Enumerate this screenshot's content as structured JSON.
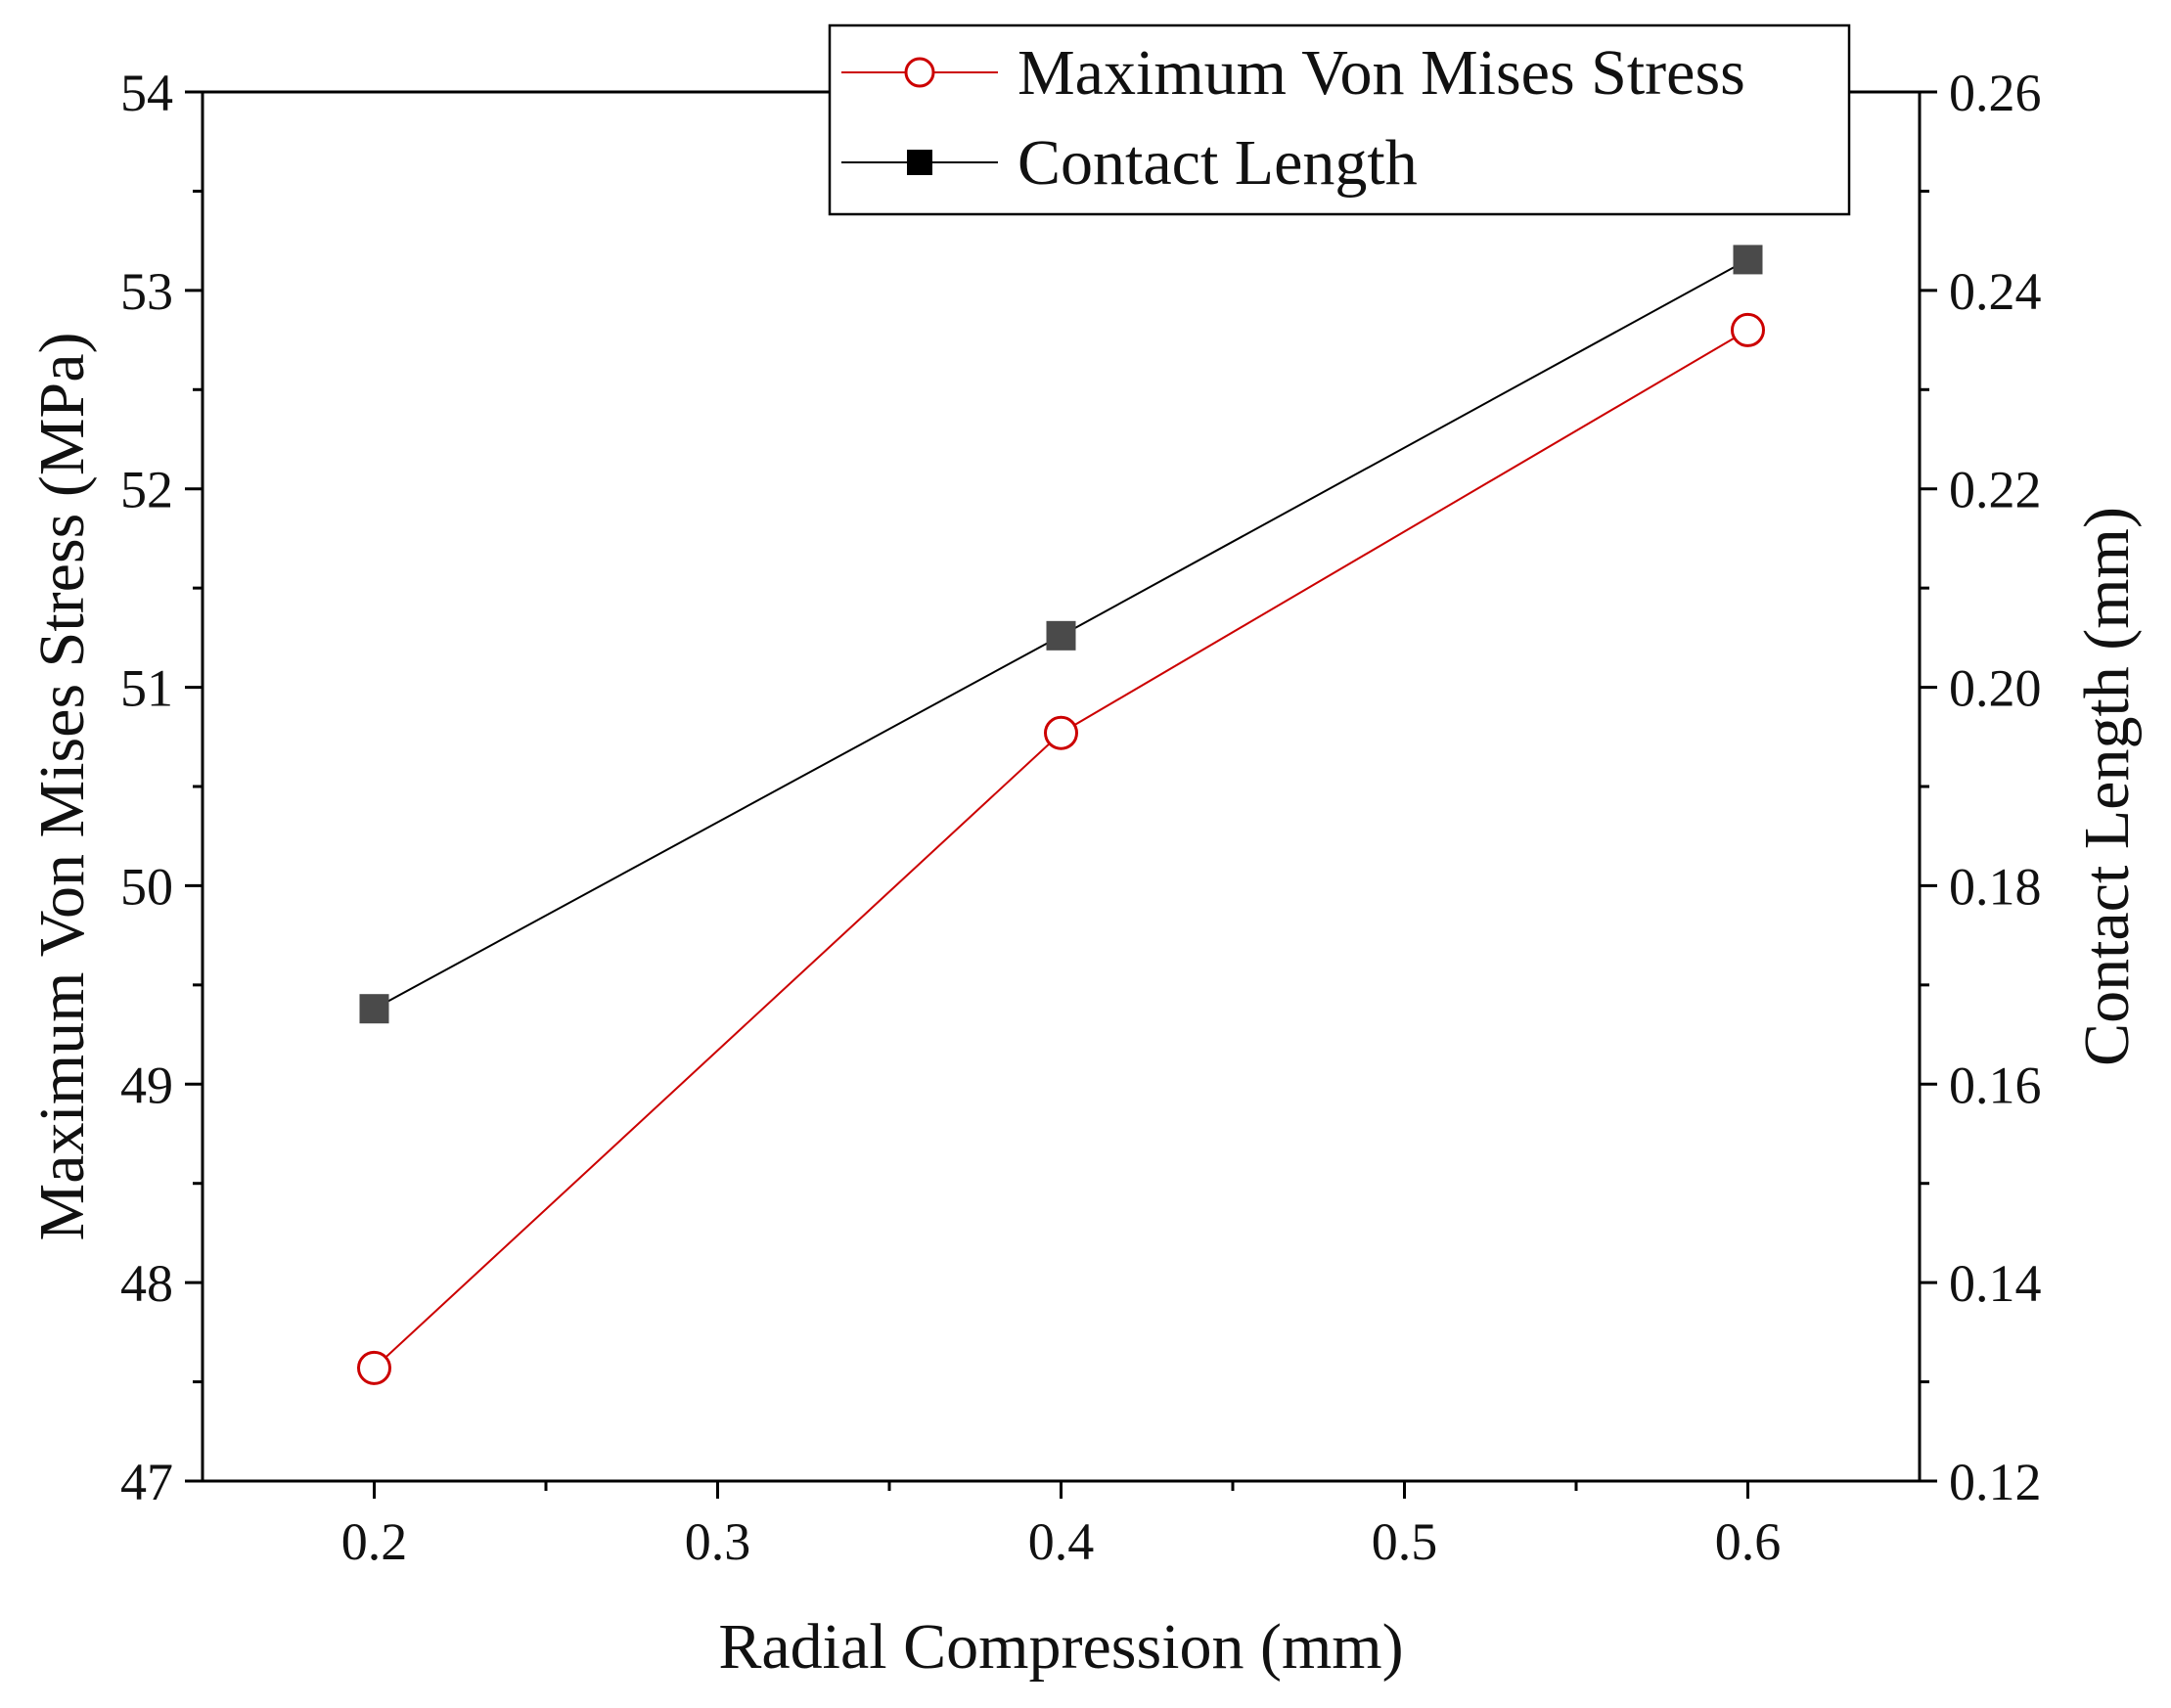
{
  "chart_data": {
    "type": "line",
    "xlabel": "Radial Compression (mm)",
    "ylabel_left": "Maximum Von Mises Stress (MPa)",
    "ylabel_right": "Contact Length (mm)",
    "xlim": [
      0.15,
      0.65
    ],
    "xticks": [
      0.2,
      0.3,
      0.4,
      0.5,
      0.6
    ],
    "xtick_labels": [
      "0.2",
      "0.3",
      "0.4",
      "0.5",
      "0.6"
    ],
    "ylim_left": [
      47,
      54
    ],
    "yticks_left": [
      47,
      48,
      49,
      50,
      51,
      52,
      53,
      54
    ],
    "ytick_labels_left": [
      "47",
      "48",
      "49",
      "50",
      "51",
      "52",
      "53",
      "54"
    ],
    "ylim_right": [
      0.12,
      0.26
    ],
    "yticks_right": [
      0.12,
      0.14,
      0.16,
      0.18,
      0.2,
      0.22,
      0.24,
      0.26
    ],
    "ytick_labels_right": [
      "0.12",
      "0.14",
      "0.16",
      "0.18",
      "0.20",
      "0.22",
      "0.24",
      "0.26"
    ],
    "grid": false,
    "legend_position": "top-right",
    "series": [
      {
        "name": "Maximum Von Mises Stress",
        "axis": "left",
        "marker": "open-circle",
        "color": "#cc0000",
        "x": [
          0.2,
          0.4,
          0.6
        ],
        "y": [
          47.57,
          50.77,
          52.8
        ]
      },
      {
        "name": "Contact Length",
        "axis": "right",
        "marker": "filled-square",
        "color": "#000000",
        "marker_color": "#4a4a4a",
        "x": [
          0.2,
          0.4,
          0.6
        ],
        "y": [
          0.1676,
          0.2052,
          0.2431
        ]
      }
    ]
  }
}
